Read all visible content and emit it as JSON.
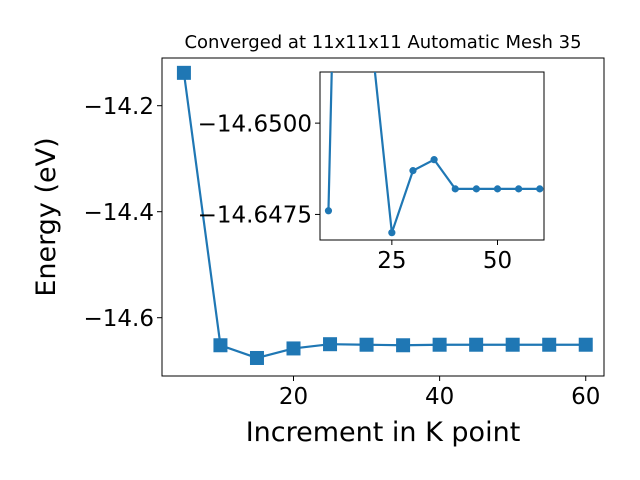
{
  "chart_data": [
    {
      "type": "line",
      "title": "Converged at 11x11x11 Automatic Mesh 35",
      "xlabel": "Increment in K point",
      "ylabel": "Energy (eV)",
      "xlim": [
        2,
        62.5
      ],
      "ylim": [
        -14.71,
        -14.11
      ],
      "x_ticks": [
        20,
        40,
        60
      ],
      "y_ticks": [
        -14.2,
        -14.4,
        -14.6
      ],
      "x_tick_labels": [
        "20",
        "40",
        "60"
      ],
      "y_tick_labels": [
        "−14.2",
        "−14.4",
        "−14.6"
      ],
      "marker": "square",
      "color": "#1f77b4",
      "series": [
        {
          "x": [
            5,
            10,
            15,
            20,
            25,
            30,
            35,
            40,
            45,
            50,
            55,
            60
          ],
          "y": [
            -14.138,
            -14.652,
            -14.676,
            -14.658,
            -14.65,
            -14.651,
            -14.652,
            -14.651,
            -14.651,
            -14.651,
            -14.651,
            -14.651
          ]
        }
      ]
    },
    {
      "type": "line",
      "inset": true,
      "xlim": [
        8,
        61
      ],
      "ylim": [
        -14.6468,
        -14.6514
      ],
      "x_ticks": [
        25,
        50
      ],
      "y_ticks": [
        -14.65,
        -14.6475
      ],
      "x_tick_labels": [
        "25",
        "50"
      ],
      "y_tick_labels": [
        "−14.6500",
        "−14.6475"
      ],
      "marker": "circle",
      "color": "#1f77b4",
      "series": [
        {
          "x": [
            10,
            11,
            20,
            25,
            30,
            35,
            40,
            45,
            50,
            55,
            60
          ],
          "y": [
            -14.6476,
            -14.6525,
            -14.6525,
            -14.647,
            -14.6487,
            -14.649,
            -14.6482,
            -14.6482,
            -14.6482,
            -14.6482,
            -14.6482
          ]
        }
      ]
    }
  ]
}
